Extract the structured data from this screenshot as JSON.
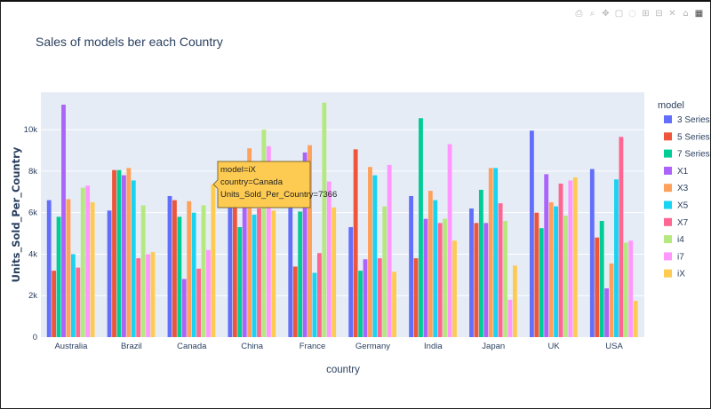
{
  "toolbar": {
    "items": [
      {
        "name": "camera-icon",
        "glyph": "⎙"
      },
      {
        "name": "zoom-icon",
        "glyph": "⌕"
      },
      {
        "name": "pan-icon",
        "glyph": "✥"
      },
      {
        "name": "box-select-icon",
        "glyph": "▢"
      },
      {
        "name": "lasso-icon",
        "glyph": "◌"
      },
      {
        "name": "zoom-in-icon",
        "glyph": "⊞"
      },
      {
        "name": "zoom-out-icon",
        "glyph": "⊟"
      },
      {
        "name": "autoscale-icon",
        "glyph": "✕"
      },
      {
        "name": "reset-axes-icon",
        "glyph": "⌂"
      },
      {
        "name": "plotly-logo-icon",
        "glyph": "▦"
      }
    ]
  },
  "chart_data": {
    "type": "bar",
    "title": "Sales of models ber each Country",
    "xlabel": "country",
    "ylabel": "Units_Sold_Per_Country",
    "categories": [
      "Australia",
      "Brazil",
      "Canada",
      "China",
      "France",
      "Germany",
      "India",
      "Japan",
      "UK",
      "USA"
    ],
    "ylim": [
      0,
      11800
    ],
    "yticks": [
      0,
      2000,
      4000,
      6000,
      8000,
      10000
    ],
    "ytick_labels": [
      "0",
      "2k",
      "4k",
      "6k",
      "8k",
      "10k"
    ],
    "grid": true,
    "legend": {
      "title": "model",
      "placement": "right"
    },
    "series": [
      {
        "name": "3 Series",
        "color": "#636efa",
        "values": [
          6600,
          6100,
          6800,
          6600,
          6500,
          5300,
          6800,
          6200,
          9950,
          8100
        ]
      },
      {
        "name": "5 Series",
        "color": "#ef553b",
        "values": [
          3200,
          8050,
          6600,
          6800,
          3400,
          9050,
          3800,
          5500,
          6000,
          4800
        ]
      },
      {
        "name": "7 Series",
        "color": "#00cc96",
        "values": [
          5800,
          8050,
          5800,
          5300,
          6050,
          3200,
          10550,
          7100,
          5250,
          5600
        ]
      },
      {
        "name": "X1",
        "color": "#ab63fa",
        "values": [
          11200,
          7800,
          2800,
          6700,
          8900,
          3750,
          5700,
          5500,
          7850,
          2350
        ]
      },
      {
        "name": "X3",
        "color": "#ffa15a",
        "values": [
          6650,
          8150,
          6550,
          9100,
          9250,
          8200,
          7050,
          8150,
          6500,
          3550
        ]
      },
      {
        "name": "X5",
        "color": "#19d3f3",
        "values": [
          4000,
          7550,
          6000,
          5900,
          3100,
          7800,
          6600,
          8150,
          6300,
          7600
        ]
      },
      {
        "name": "X7",
        "color": "#ff6692",
        "values": [
          3350,
          3800,
          3300,
          6200,
          4050,
          3800,
          5500,
          6450,
          7400,
          9650
        ]
      },
      {
        "name": "i4",
        "color": "#b6e880",
        "values": [
          7200,
          6350,
          6350,
          10000,
          11300,
          6300,
          5700,
          5600,
          5850,
          4550
        ]
      },
      {
        "name": "i7",
        "color": "#ff97ff",
        "values": [
          7300,
          4000,
          4200,
          9200,
          7500,
          8300,
          9300,
          1800,
          7550,
          4650
        ]
      },
      {
        "name": "iX",
        "color": "#fecb52",
        "values": [
          6500,
          4100,
          7366,
          6100,
          6250,
          3150,
          4650,
          3450,
          7700,
          1750
        ]
      }
    ],
    "tooltip": {
      "lines": [
        "model=iX",
        "country=Canada",
        "Units_Sold_Per_Country=7366"
      ],
      "series_index": 9,
      "category_index": 2
    }
  }
}
